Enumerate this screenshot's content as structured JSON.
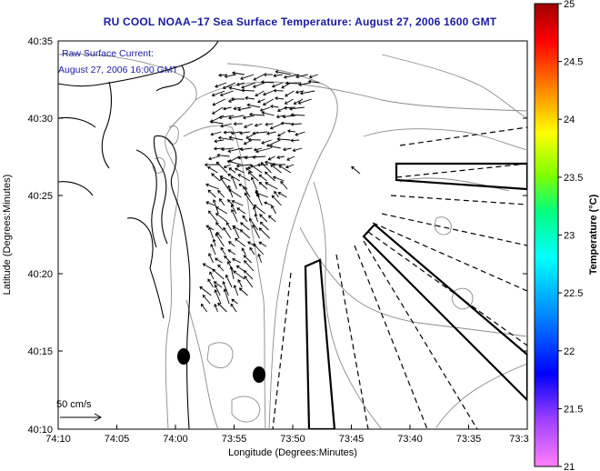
{
  "map": {
    "title": "RU COOL  NOAA−17  Sea Surface Temperature:  August 27, 2006 1600 GMT",
    "annotation_line1": "Raw Surface Current:",
    "annotation_line2": "August 27, 2006 16:00 GMT",
    "scale_label": "50 cm/s",
    "xlabel": "Longitude (Degrees:Minutes)",
    "ylabel": "Latitude (Degrees:Minutes)",
    "xticks": [
      "74:10",
      "74:05",
      "74:00",
      "73:55",
      "73:50",
      "73:45",
      "73:40",
      "73:35",
      "73:3"
    ],
    "yticks": [
      "40:35",
      "40:30",
      "40:25",
      "40:20",
      "40:15",
      "40:10"
    ],
    "colorbar": {
      "label": "Temperature (°C)",
      "ticks": [
        "25",
        "24.5",
        "24",
        "23.5",
        "23",
        "22.5",
        "22",
        "21.5",
        "21"
      ],
      "range": [
        21,
        25
      ],
      "colors": [
        "#ff80ff",
        "#6a00ff",
        "#0000ff",
        "#0080ff",
        "#00ffff",
        "#00ff80",
        "#80ff00",
        "#ffff00",
        "#ff8000",
        "#ff0000",
        "#800000"
      ]
    },
    "colors": {
      "title": "#1a1aa0",
      "coast": "#000000",
      "bathymetry": "#8a8a8a",
      "vectors": "#000000"
    }
  }
}
